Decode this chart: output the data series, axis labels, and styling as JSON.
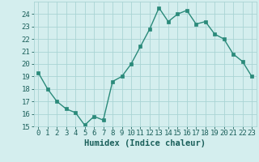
{
  "x": [
    0,
    1,
    2,
    3,
    4,
    5,
    6,
    7,
    8,
    9,
    10,
    11,
    12,
    13,
    14,
    15,
    16,
    17,
    18,
    19,
    20,
    21,
    22,
    23
  ],
  "y": [
    19.3,
    18.0,
    17.0,
    16.4,
    16.1,
    15.1,
    15.8,
    15.5,
    18.6,
    19.0,
    20.0,
    21.4,
    22.8,
    24.5,
    23.4,
    24.0,
    24.3,
    23.2,
    23.4,
    22.4,
    22.0,
    20.8,
    20.2,
    19.0
  ],
  "line_color": "#2a8a7a",
  "marker_color": "#2a8a7a",
  "bg_color": "#d4eeee",
  "grid_color": "#aad4d4",
  "xlabel": "Humidex (Indice chaleur)",
  "xlim": [
    -0.5,
    23.5
  ],
  "ylim": [
    15,
    25
  ],
  "yticks": [
    15,
    16,
    17,
    18,
    19,
    20,
    21,
    22,
    23,
    24
  ],
  "xticks": [
    0,
    1,
    2,
    3,
    4,
    5,
    6,
    7,
    8,
    9,
    10,
    11,
    12,
    13,
    14,
    15,
    16,
    17,
    18,
    19,
    20,
    21,
    22,
    23
  ],
  "font_color": "#1a5f5a",
  "tick_fontsize": 6.5,
  "label_fontsize": 7.5
}
